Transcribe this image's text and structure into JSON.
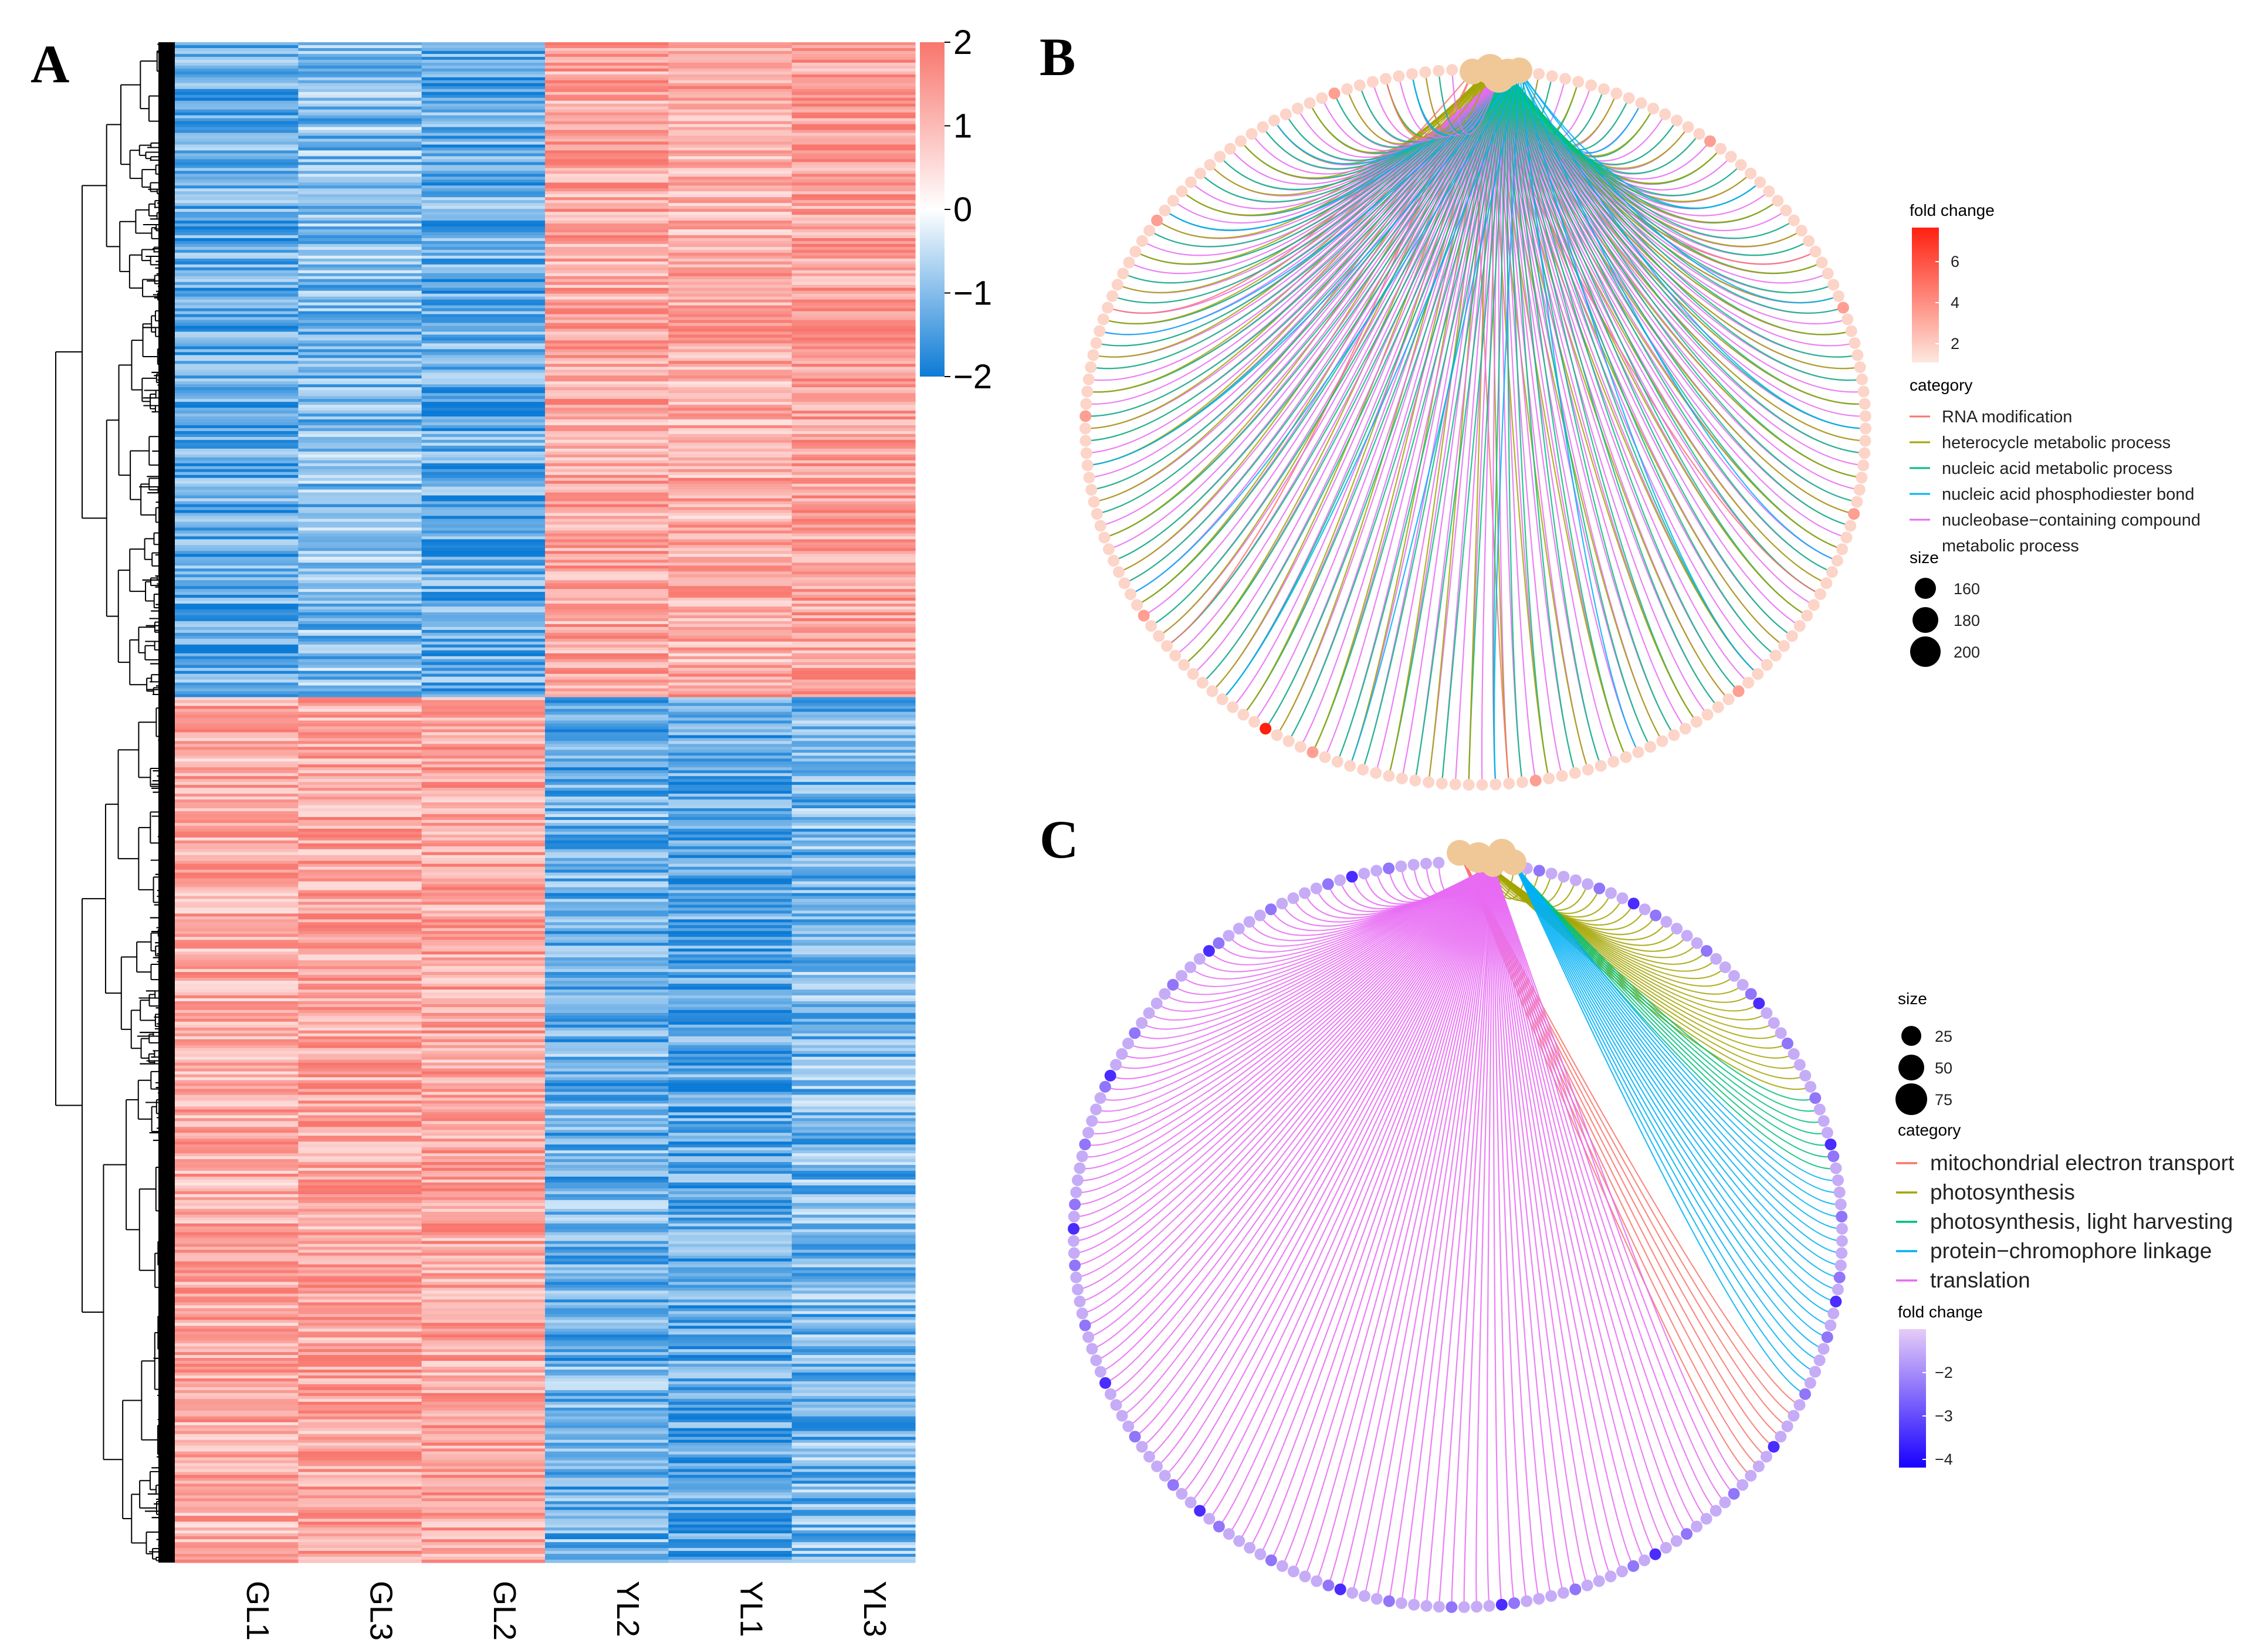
{
  "figure": {
    "colors": {
      "pos": "#f8766d",
      "neg": "#0c7bd6",
      "mid": "#ffffff",
      "node": "#f0c898"
    }
  },
  "chart_data": [
    {
      "panel": "A",
      "type": "heatmap",
      "title": "",
      "columns": [
        "GL1",
        "GL3",
        "GL2",
        "YL2",
        "YL1",
        "YL3"
      ],
      "row_clusters": [
        {
          "name": "upper cluster",
          "row_fraction": 0.43,
          "values": [
            -1.3,
            -1.0,
            -1.3,
            1.3,
            1.2,
            1.4
          ]
        },
        {
          "name": "lower cluster",
          "row_fraction": 0.57,
          "values": [
            1.2,
            1.3,
            1.3,
            -1.2,
            -1.4,
            -1.1
          ]
        }
      ],
      "colorbar": {
        "ticks": [
          "2",
          "1",
          "0",
          "−1",
          "−2"
        ],
        "range": [
          -2,
          2
        ]
      },
      "dendrogram": true
    },
    {
      "panel": "B",
      "type": "network",
      "legend_fold_change": {
        "title": "fold change",
        "ticks": [
          "6",
          "4",
          "2"
        ],
        "range": [
          1,
          7
        ]
      },
      "legend_category": {
        "title": "category",
        "items": [
          {
            "label": "RNA modification",
            "color": "#f8766d"
          },
          {
            "label": "heterocycle metabolic process",
            "color": "#a3a500"
          },
          {
            "label": "nucleic acid metabolic process",
            "color": "#00bf7d"
          },
          {
            "label": "nucleic acid phosphodiester bond",
            "color": "#00b0f6"
          },
          {
            "label": "nucleobase−containing compound",
            "label2": "metabolic process",
            "color": "#e76bf3"
          }
        ]
      },
      "legend_size": {
        "title": "size",
        "values": [
          "160",
          "180",
          "200"
        ]
      }
    },
    {
      "panel": "C",
      "type": "network",
      "legend_size": {
        "title": "size",
        "values": [
          "25",
          "50",
          "75"
        ]
      },
      "legend_category": {
        "title": "category",
        "items": [
          {
            "label": "mitochondrial electron transport",
            "color": "#f8766d"
          },
          {
            "label": "photosynthesis",
            "color": "#a3a500"
          },
          {
            "label": "photosynthesis, light harvesting",
            "color": "#00bf7d"
          },
          {
            "label": "protein−chromophore linkage",
            "color": "#00b0f6"
          },
          {
            "label": "translation",
            "color": "#e76bf3"
          }
        ]
      },
      "legend_fold_change": {
        "title": "fold change",
        "ticks": [
          "−2",
          "−3",
          "−4"
        ],
        "range": [
          -4.3,
          -1.5
        ]
      }
    }
  ]
}
